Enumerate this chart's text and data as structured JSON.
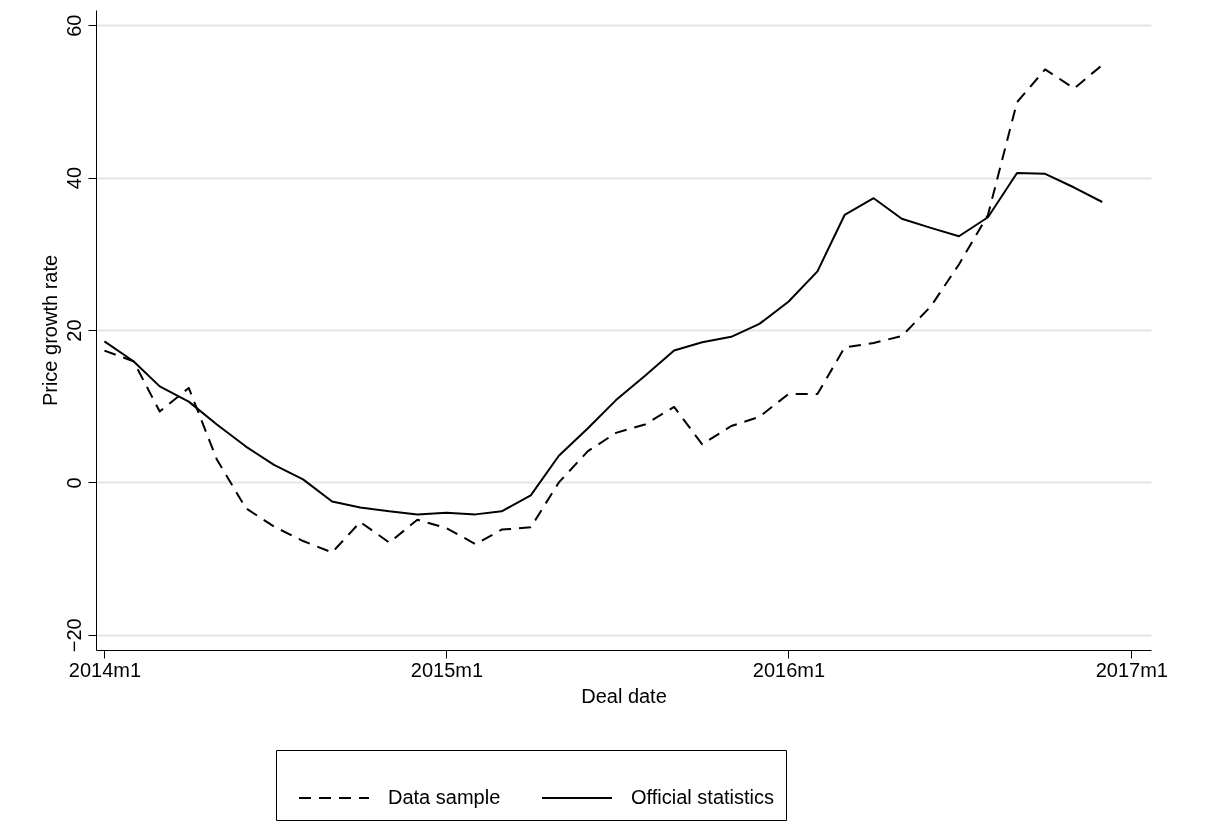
{
  "chart_data": {
    "type": "line",
    "xlabel": "Deal date",
    "ylabel": "Price growth rate",
    "x": [
      "2014-01",
      "2014-02",
      "2014-03",
      "2014-04",
      "2014-05",
      "2014-06",
      "2014-07",
      "2014-08",
      "2014-09",
      "2014-10",
      "2014-11",
      "2014-12",
      "2015-01",
      "2015-02",
      "2015-03",
      "2015-04",
      "2015-05",
      "2015-06",
      "2015-07",
      "2015-08",
      "2015-09",
      "2015-10",
      "2015-11",
      "2015-12",
      "2016-01",
      "2016-02",
      "2016-03",
      "2016-04",
      "2016-05",
      "2016-06",
      "2016-07",
      "2016-08",
      "2016-09",
      "2016-10",
      "2016-11",
      "2016-12"
    ],
    "series": [
      {
        "name": "Data sample",
        "color": "#000000",
        "line_style": "dashed",
        "values": [
          17.3,
          15.9,
          9.3,
          12.4,
          3,
          -3.4,
          -5.8,
          -7.7,
          -9.2,
          -5.2,
          -7.9,
          -4.9,
          -6.0,
          -8.1,
          -6.2,
          -5.9,
          0,
          4.1,
          6.5,
          7.6,
          9.9,
          5.0,
          7.4,
          8.6,
          11.6,
          11.6,
          17.7,
          18.3,
          19.2,
          23.1,
          28.6,
          35.1,
          49.9,
          54.2,
          51.7,
          54.8
        ]
      },
      {
        "name": "Official statistics",
        "color": "#000000",
        "line_style": "solid",
        "values": [
          18.5,
          15.9,
          12.6,
          10.6,
          7.6,
          4.7,
          2.3,
          0.4,
          -2.5,
          -3.3,
          -3.8,
          -4.2,
          -4.0,
          -4.2,
          -3.8,
          -1.7,
          3.5,
          7.1,
          10.8,
          14.0,
          17.3,
          18.4,
          19.1,
          20.8,
          23.7,
          27.7,
          35.1,
          37.3,
          34.6,
          33.4,
          32.3,
          34.8,
          40.6,
          40.5,
          38.7,
          36.8
        ]
      }
    ],
    "xlim": [
      "2013-12-23",
      "2017-01-22"
    ],
    "xticks": [
      {
        "value": "2014-01",
        "label": "2014m1"
      },
      {
        "value": "2015-01",
        "label": "2015m1"
      },
      {
        "value": "2016-01",
        "label": "2016m1"
      },
      {
        "value": "2017-01",
        "label": "2017m1"
      }
    ],
    "ylim": [
      -22,
      62
    ],
    "yticks": [
      {
        "value": -20,
        "label": "−20"
      },
      0,
      20,
      40,
      60
    ],
    "grid": "y",
    "legend": "bottom"
  }
}
